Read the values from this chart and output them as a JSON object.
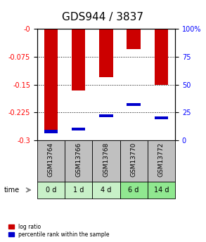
{
  "title": "GDS944 / 3837",
  "samples": [
    "GSM13764",
    "GSM13766",
    "GSM13768",
    "GSM13770",
    "GSM13772"
  ],
  "time_labels": [
    "0 d",
    "1 d",
    "4 d",
    "6 d",
    "14 d"
  ],
  "log_ratios": [
    -0.272,
    -0.165,
    -0.13,
    -0.055,
    -0.15
  ],
  "percentile_ranks": [
    8,
    10,
    22,
    32,
    20
  ],
  "ylim_left": [
    -0.3,
    0.0
  ],
  "ylim_right": [
    0,
    100
  ],
  "yticks_left": [
    0,
    -0.075,
    -0.15,
    -0.225,
    -0.3
  ],
  "ytick_labels_left": [
    "-0",
    "-0.075",
    "-0.15",
    "-0.225",
    "-0.3"
  ],
  "yticks_right": [
    0,
    25,
    50,
    75,
    100
  ],
  "ytick_labels_right": [
    "0",
    "25",
    "50",
    "75",
    "100%"
  ],
  "bar_width": 0.5,
  "log_ratio_color": "#cc0000",
  "percentile_color": "#0000cc",
  "sample_bg_color": "#c0c0c0",
  "time_bg_colors": [
    "#c8f0c8",
    "#c8f0c8",
    "#c8f0c8",
    "#90e890",
    "#90e890"
  ],
  "legend_red_label": "log ratio",
  "legend_blue_label": "percentile rank within the sample",
  "title_fontsize": 11,
  "tick_fontsize": 7,
  "label_fontsize": 7,
  "sample_fontsize": 6.5
}
